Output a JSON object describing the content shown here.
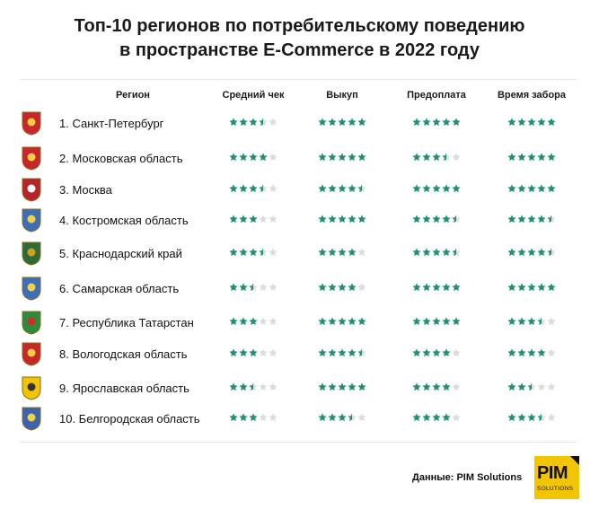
{
  "title": {
    "line1": "Топ-10 регионов по потребительскому поведению",
    "line2": "в пространстве E-Commerce в 2022 году"
  },
  "colors": {
    "star_filled": "#1f8f76",
    "star_empty": "#dcdcdc",
    "logo_bg": "#f2c500"
  },
  "chart_data": {
    "type": "table",
    "scale_max": 5,
    "columns": [
      "Регион",
      "Средний чек",
      "Выкуп",
      "Предоплата",
      "Время забора"
    ],
    "rows": [
      {
        "region": "1. Санкт-Петербург",
        "emblem": "spb-coat-of-arms-icon",
        "ratings": [
          3.5,
          5,
          5,
          5
        ]
      },
      {
        "region": "2. Московская область",
        "emblem": "moscow-oblast-coat-of-arms-icon",
        "ratings": [
          4,
          5,
          3.5,
          5
        ]
      },
      {
        "region": "3. Москва",
        "emblem": "moscow-coat-of-arms-icon",
        "ratings": [
          3.5,
          4.5,
          5,
          5
        ]
      },
      {
        "region": "4. Костромская область",
        "emblem": "kostroma-coat-of-arms-icon",
        "ratings": [
          3,
          5,
          4.5,
          4.5
        ]
      },
      {
        "region": "5. Краснодарский край",
        "emblem": "krasnodar-coat-of-arms-icon",
        "ratings": [
          3.5,
          4,
          4.5,
          4.5
        ]
      },
      {
        "region": "6. Самарская область",
        "emblem": "samara-coat-of-arms-icon",
        "ratings": [
          2.5,
          4,
          5,
          5
        ]
      },
      {
        "region": "7. Республика Татарстан",
        "emblem": "tatarstan-coat-of-arms-icon",
        "ratings": [
          3,
          5,
          5,
          3.5
        ]
      },
      {
        "region": "8. Вологодская область",
        "emblem": "vologda-coat-of-arms-icon",
        "ratings": [
          3,
          4.5,
          4,
          4
        ]
      },
      {
        "region": "9. Ярославская область",
        "emblem": "yaroslavl-coat-of-arms-icon",
        "ratings": [
          2.5,
          5,
          4,
          2.5
        ]
      },
      {
        "region": "10. Белгородская область",
        "emblem": "belgorod-coat-of-arms-icon",
        "ratings": [
          3,
          3.5,
          4,
          3.5
        ]
      }
    ]
  },
  "footer": {
    "source": "Данные: PIM Solutions"
  },
  "logo": {
    "name": "PIM",
    "subtitle": "SOLUTIONS"
  }
}
